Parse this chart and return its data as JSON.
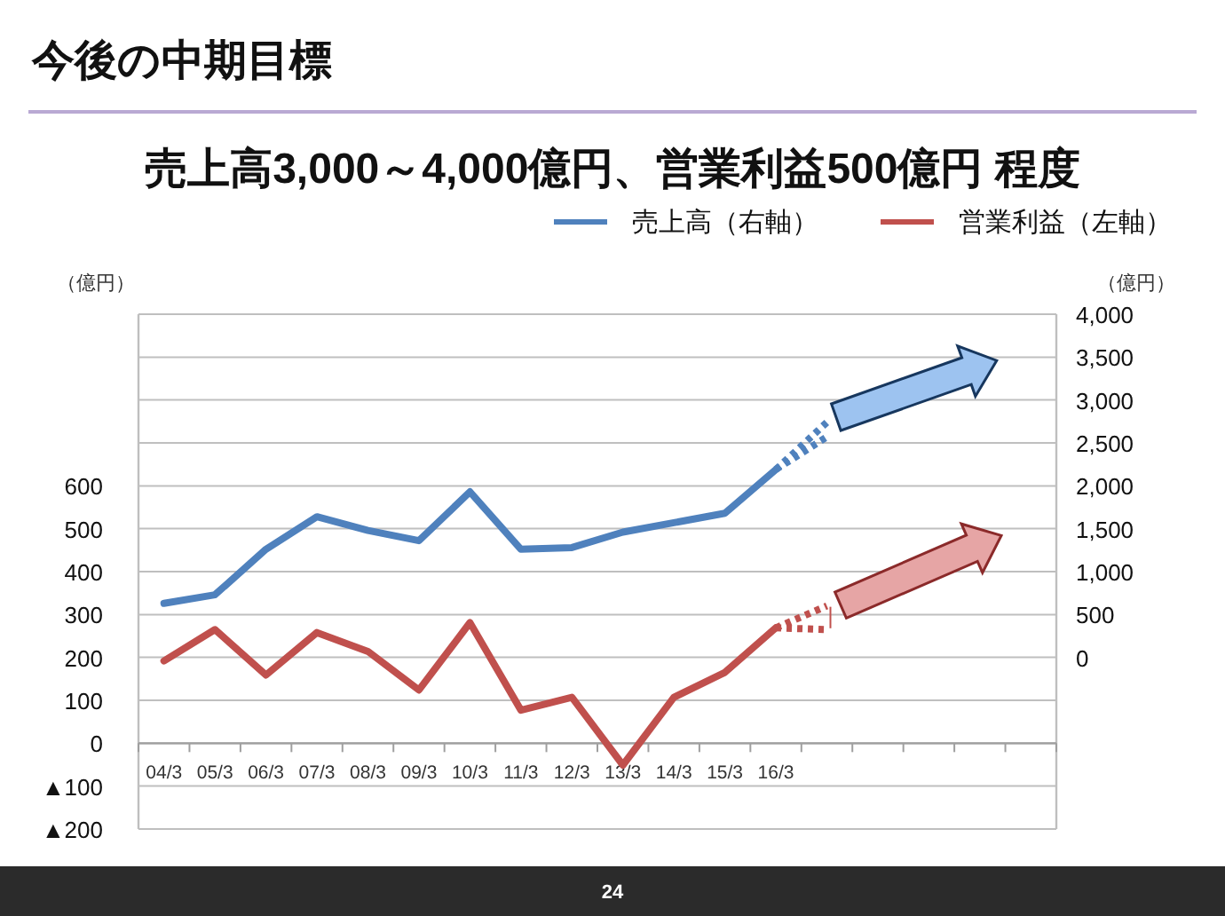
{
  "chart_data": {
    "type": "line",
    "title": "今後の中期目標",
    "subtitle": "売上高3,000～4,000億円、営業利益500億円 程度",
    "ylabel": "（億円）",
    "y2label": "（億円）",
    "annotations": [
      "24"
    ],
    "categories": [
      "04/3",
      "05/3",
      "06/3",
      "07/3",
      "08/3",
      "09/3",
      "10/3",
      "11/3",
      "12/3",
      "13/3",
      "14/3",
      "15/3",
      "16/3",
      null,
      null,
      null,
      null,
      null
    ],
    "series": [
      {
        "name": "売上高（右軸）",
        "color": "#4f81bd",
        "axis": "y2",
        "values": [
          630,
          730,
          1260,
          1640,
          1480,
          1360,
          1930,
          1260,
          1280,
          1460,
          1570,
          1680,
          2190,
          null,
          null,
          null,
          null,
          null
        ]
      },
      {
        "name": "営業利益（左軸）",
        "color": "#c0504d",
        "values": [
          192,
          265,
          159,
          258,
          214,
          124,
          281,
          77,
          107,
          -51,
          107,
          165,
          269,
          null,
          null,
          null,
          null,
          null
        ]
      },
      {
        "color": "#4f81bd",
        "axis": "y2",
        "line_style": "dotted",
        "values": [
          null,
          null,
          null,
          null,
          null,
          null,
          null,
          null,
          null,
          null,
          null,
          null,
          2190,
          2740,
          null,
          null,
          null,
          null
        ]
      },
      {
        "color": "#4f81bd",
        "axis": "y2",
        "line_style": "dotted",
        "values": [
          null,
          null,
          null,
          null,
          null,
          null,
          null,
          null,
          null,
          null,
          null,
          null,
          2190,
          2570,
          null,
          null,
          null,
          null
        ]
      },
      {
        "color": "#c0504d",
        "line_style": "dotted",
        "values": [
          null,
          null,
          null,
          null,
          null,
          null,
          null,
          null,
          null,
          null,
          null,
          null,
          269,
          320,
          null,
          null,
          null,
          null
        ]
      },
      {
        "color": "#c0504d",
        "line_style": "dotted",
        "values": [
          null,
          null,
          null,
          null,
          null,
          null,
          null,
          null,
          null,
          null,
          null,
          null,
          269,
          265,
          null,
          null,
          null,
          null
        ]
      }
    ],
    "ylim": [
      -200,
      1000
    ],
    "yticks": [
      {
        "value": -200,
        "label": "▲200"
      },
      {
        "value": -100,
        "label": "▲100"
      },
      0,
      100,
      200,
      300,
      400,
      500,
      600
    ],
    "y2lim": [
      -2000,
      4000
    ],
    "y2ticks": [
      {
        "value": 0,
        "label": "0"
      },
      {
        "value": 500,
        "label": "500"
      },
      {
        "value": 1000,
        "label": "1,000"
      },
      {
        "value": 1500,
        "label": "1,500"
      },
      {
        "value": 2000,
        "label": "2,000"
      },
      {
        "value": 2500,
        "label": "2,500"
      },
      {
        "value": 3000,
        "label": "3,000"
      },
      {
        "value": 3500,
        "label": "3,500"
      },
      {
        "value": 4000,
        "label": "4,000"
      }
    ],
    "grid": "y",
    "legend": "top right",
    "line_style": "solid",
    "marker": "none"
  }
}
